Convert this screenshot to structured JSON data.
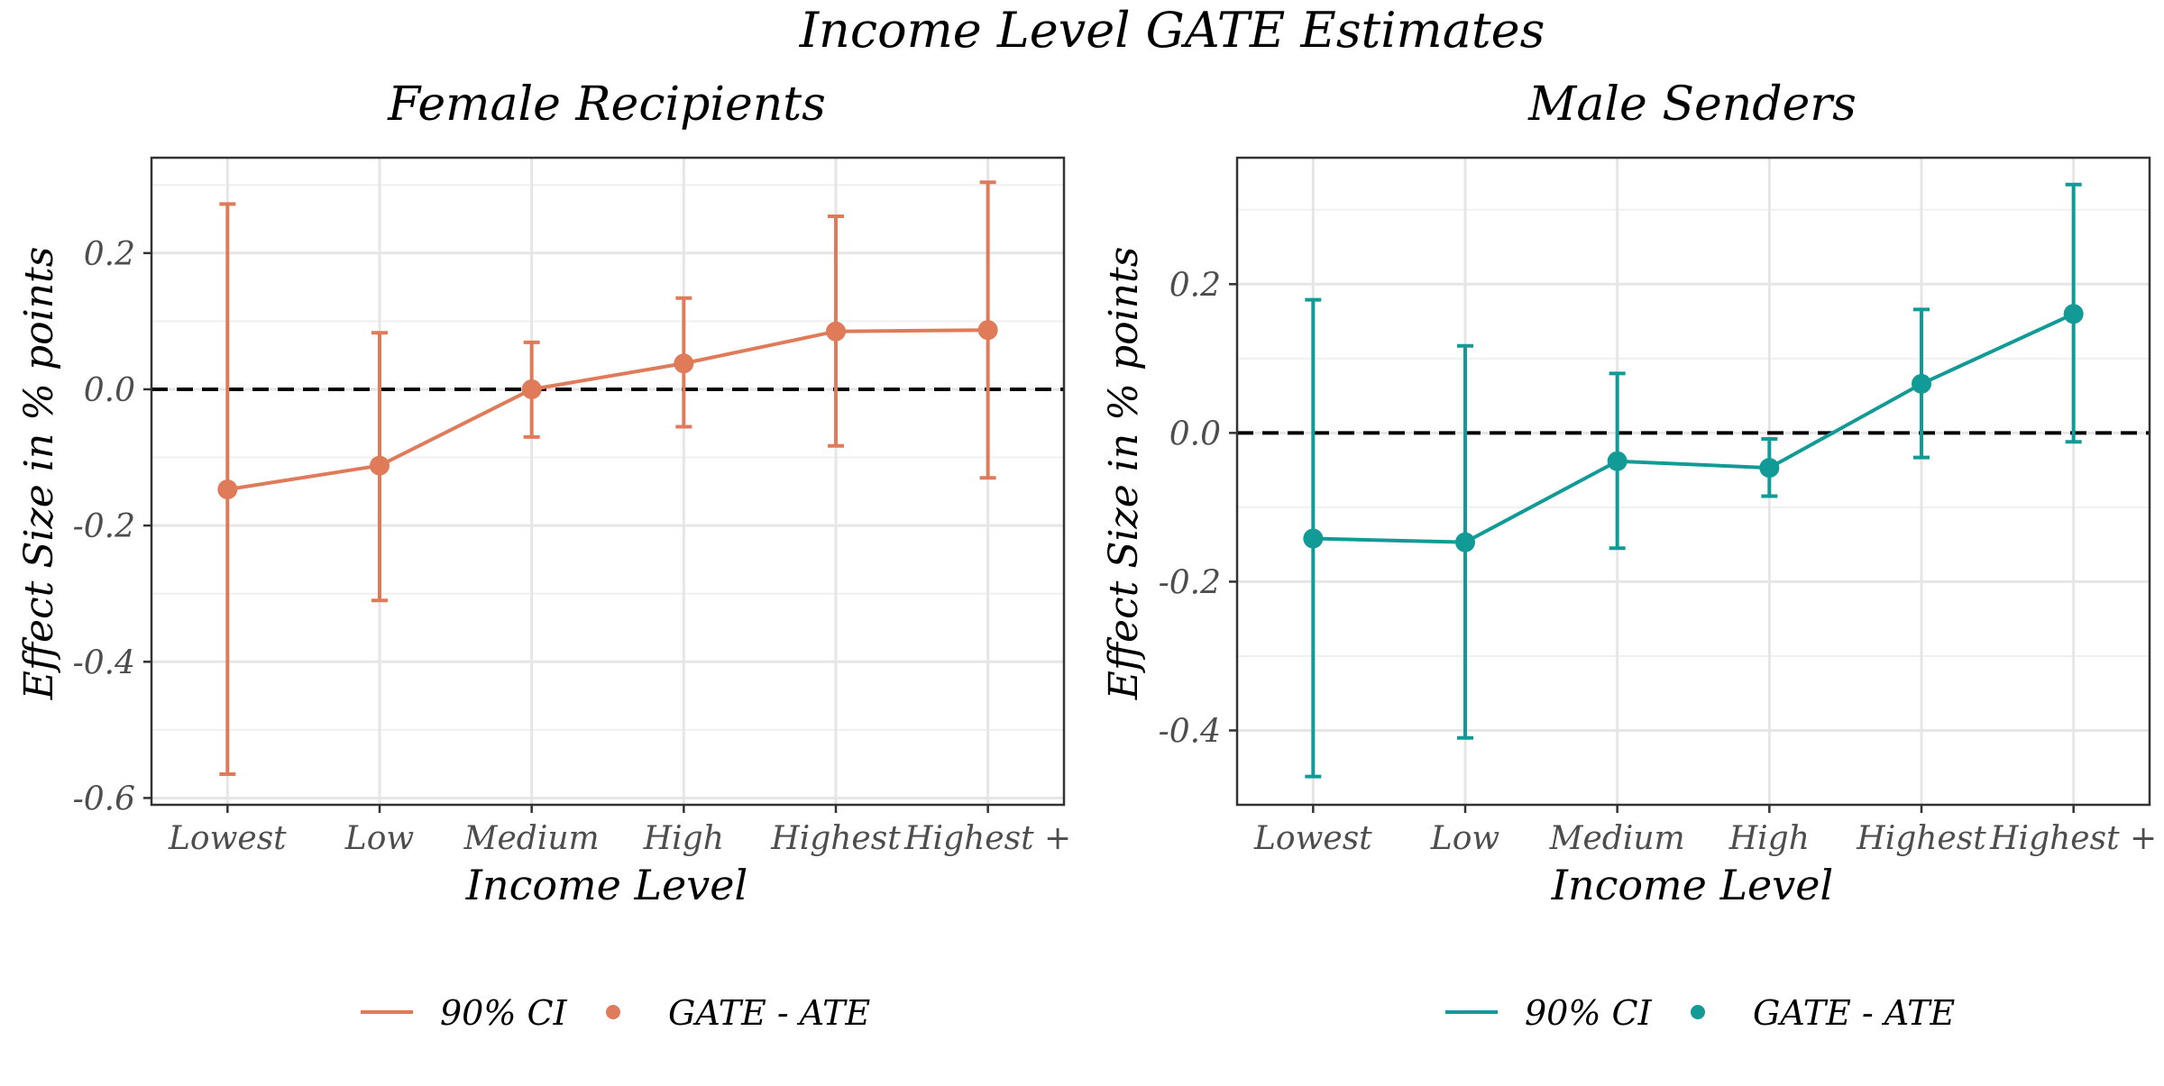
{
  "figure": {
    "title": "Income Level GATE Estimates"
  },
  "chart_data": [
    {
      "type": "line",
      "title": "Female Recipients",
      "xlabel": "Income Level",
      "ylabel": "Effect Size in % points",
      "categories": [
        "Lowest",
        "Low",
        "Medium",
        "High",
        "Highest",
        "Highest +"
      ],
      "ylim": [
        -0.61,
        0.34
      ],
      "yticks": [
        -0.6,
        -0.4,
        -0.2,
        0.0,
        0.2
      ],
      "ytick_labels": [
        "-0.6",
        "-0.4",
        "-0.2",
        "0.0",
        "0.2"
      ],
      "reference_line": 0.0,
      "grid": true,
      "color": "#E07B5A",
      "series": [
        {
          "name": "GATE - ATE",
          "values": [
            -0.147,
            -0.112,
            0.0,
            0.038,
            0.085,
            0.087
          ]
        }
      ],
      "ci": {
        "name": "90% CI",
        "lower": [
          -0.565,
          -0.31,
          -0.07,
          -0.055,
          -0.083,
          -0.13
        ],
        "upper": [
          0.272,
          0.083,
          0.069,
          0.134,
          0.254,
          0.304
        ]
      },
      "legend": {
        "ci_label": "90% CI",
        "point_label": "GATE - ATE",
        "position": "bottom"
      }
    },
    {
      "type": "line",
      "title": "Male Senders",
      "xlabel": "Income Level",
      "ylabel": "Effect Size in % points",
      "categories": [
        "Lowest",
        "Low",
        "Medium",
        "High",
        "Highest",
        "Highest +"
      ],
      "ylim": [
        -0.5,
        0.37
      ],
      "yticks": [
        -0.4,
        -0.2,
        0.0,
        0.2
      ],
      "ytick_labels": [
        "-0.4",
        "-0.2",
        "0.0",
        "0.2"
      ],
      "reference_line": 0.0,
      "grid": true,
      "color": "#129A96",
      "series": [
        {
          "name": "GATE - ATE",
          "values": [
            -0.142,
            -0.147,
            -0.038,
            -0.047,
            0.066,
            0.16
          ]
        }
      ],
      "ci": {
        "name": "90% CI",
        "lower": [
          -0.462,
          -0.41,
          -0.155,
          -0.085,
          -0.033,
          -0.012
        ],
        "upper": [
          0.179,
          0.117,
          0.08,
          -0.008,
          0.166,
          0.334
        ]
      },
      "legend": {
        "ci_label": "90% CI",
        "point_label": "GATE - ATE",
        "position": "bottom"
      }
    }
  ]
}
